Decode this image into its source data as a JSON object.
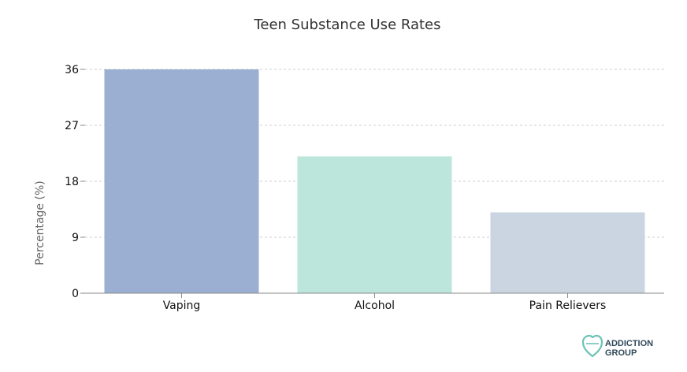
{
  "chart_data": {
    "type": "bar",
    "title": "Teen Substance Use Rates",
    "xlabel": "",
    "ylabel": "Percentage (%)",
    "categories": [
      "Vaping",
      "Alcohol",
      "Pain Relievers"
    ],
    "values": [
      36,
      22,
      13
    ],
    "bar_colors": [
      "#9aafd1",
      "#bce5db",
      "#cbd5e1"
    ],
    "yticks": [
      0,
      9,
      18,
      27,
      36
    ],
    "ylim": [
      0,
      36
    ],
    "grid": true,
    "legend": "none"
  },
  "branding": {
    "logo_line1": "ADDICTION",
    "logo_line2": "GROUP",
    "logo_color": "#6cc3b6"
  }
}
